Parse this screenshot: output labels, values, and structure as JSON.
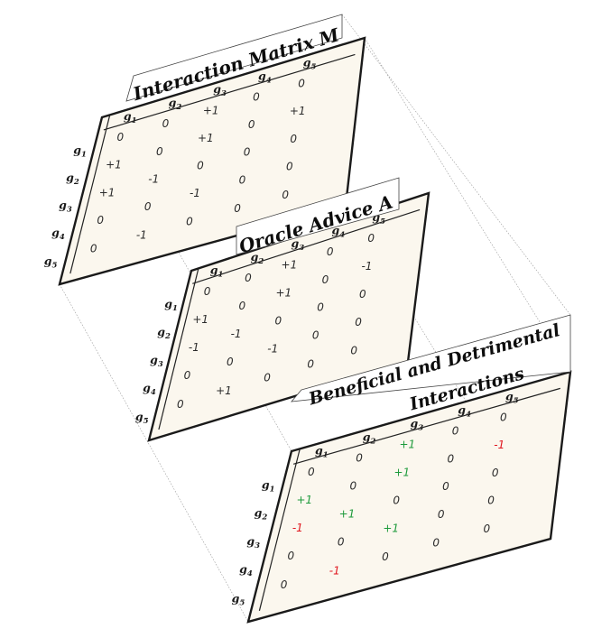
{
  "genes": [
    {
      "base": "g",
      "sub": "1"
    },
    {
      "base": "g",
      "sub": "2"
    },
    {
      "base": "g",
      "sub": "3"
    },
    {
      "base": "g",
      "sub": "4"
    },
    {
      "base": "g",
      "sub": "5"
    }
  ],
  "panels": [
    {
      "title_lines": [
        "Interaction Matrix M"
      ],
      "colored": false,
      "matrix": [
        [
          "0",
          "0",
          "+1",
          "0",
          "0"
        ],
        [
          "+1",
          "0",
          "+1",
          "0",
          "+1"
        ],
        [
          "+1",
          "-1",
          "0",
          "0",
          "0"
        ],
        [
          "0",
          "0",
          "-1",
          "0",
          "0"
        ],
        [
          "0",
          "-1",
          "0",
          "0",
          "0"
        ]
      ]
    },
    {
      "title_lines": [
        "Oracle Advice A"
      ],
      "colored": false,
      "matrix": [
        [
          "0",
          "0",
          "+1",
          "0",
          "0"
        ],
        [
          "+1",
          "0",
          "+1",
          "0",
          "-1"
        ],
        [
          "-1",
          "-1",
          "0",
          "0",
          "0"
        ],
        [
          "0",
          "0",
          "-1",
          "0",
          "0"
        ],
        [
          "0",
          "+1",
          "0",
          "0",
          "0"
        ]
      ]
    },
    {
      "title_lines": [
        "Beneficial and Detrimental",
        "Interactions"
      ],
      "colored": true,
      "matrix": [
        [
          "0",
          "0",
          "+1",
          "0",
          "0"
        ],
        [
          "+1",
          "0",
          "+1",
          "0",
          "-1"
        ],
        [
          "-1",
          "+1",
          "0",
          "0",
          "0"
        ],
        [
          "0",
          "0",
          "+1",
          "0",
          "0"
        ],
        [
          "0",
          "-1",
          "0",
          "0",
          "0"
        ]
      ]
    }
  ],
  "colors": {
    "beneficial": "#1d9a3b",
    "detrimental": "#e0161e",
    "panel_fill": "#fbf7ee",
    "border": "#1a1a1a"
  }
}
